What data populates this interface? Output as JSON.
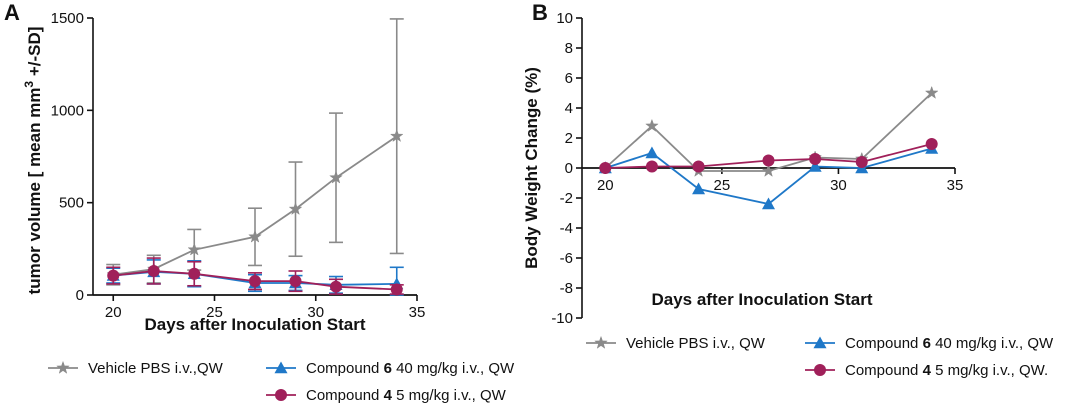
{
  "figure": {
    "panel_a_label": "A",
    "panel_b_label": "B"
  },
  "colors": {
    "vehicle": "#8a8a8a",
    "compound6": "#1f78c8",
    "compound4": "#a0205a",
    "axis": "#111111"
  },
  "chart_data": [
    {
      "type": "line",
      "panel": "A",
      "xlabel": "Days after Inoculation Start",
      "ylabel_pre": "tumor volume [ mean mm",
      "ylabel_sup": "3",
      "ylabel_post": " +/-SD]",
      "xlim": [
        19,
        35
      ],
      "ylim": [
        0,
        1500
      ],
      "xticks": [
        20,
        25,
        30,
        35
      ],
      "yticks": [
        0,
        500,
        1000,
        1500
      ],
      "x": [
        20,
        22,
        24,
        27,
        29,
        31,
        34
      ],
      "series": [
        {
          "key": "vehicle",
          "name": "Vehicle PBS i.v.,QW",
          "marker": "star",
          "values": [
            110,
            140,
            245,
            315,
            465,
            635,
            860
          ],
          "sd": [
            55,
            75,
            110,
            155,
            255,
            350,
            635
          ]
        },
        {
          "key": "compound6",
          "name": "Compound 6 40 mg/kg i.v., QW",
          "marker": "triangle",
          "values": [
            105,
            125,
            115,
            65,
            65,
            55,
            60
          ],
          "sd": [
            40,
            65,
            70,
            45,
            40,
            45,
            90
          ]
        },
        {
          "key": "compound4",
          "name": "Compound 4 5 mg/kg i.v., QW",
          "marker": "circle",
          "values": [
            105,
            130,
            115,
            75,
            75,
            45,
            30
          ],
          "sd": [
            45,
            70,
            65,
            45,
            55,
            40,
            25
          ]
        }
      ],
      "legend": [
        {
          "key": "vehicle",
          "marker": "star",
          "text": "Vehicle PBS i.v.,QW",
          "bold": "",
          "rest": ""
        },
        {
          "key": "compound6",
          "marker": "triangle",
          "text": "Compound ",
          "bold": "6",
          "rest": " 40 mg/kg i.v., QW"
        },
        {
          "key": "compound4",
          "marker": "circle",
          "text": "Compound ",
          "bold": "4",
          "rest": "   5 mg/kg i.v., QW"
        }
      ]
    },
    {
      "type": "line",
      "panel": "B",
      "xlabel": "Days after Inoculation Start",
      "ylabel": "Body Weight Change (%)",
      "xlim": [
        19,
        35
      ],
      "ylim": [
        -10,
        10
      ],
      "xticks": [
        20,
        25,
        30,
        35
      ],
      "yticks": [
        -10,
        -8,
        -6,
        -4,
        -2,
        0,
        2,
        4,
        6,
        8,
        10
      ],
      "x": [
        20,
        22,
        24,
        27,
        29,
        31,
        34
      ],
      "series": [
        {
          "key": "vehicle",
          "name": "Vehicle PBS i.v., QW",
          "marker": "star",
          "values": [
            0,
            2.8,
            -0.2,
            -0.2,
            0.7,
            0.6,
            5.0
          ]
        },
        {
          "key": "compound6",
          "name": "Compound 6 40 mg/kg i.v., QW",
          "marker": "triangle",
          "values": [
            0,
            1.0,
            -1.4,
            -2.4,
            0.1,
            0.0,
            1.3
          ]
        },
        {
          "key": "compound4",
          "name": "Compound 4 5 mg/kg i.v., QW.",
          "marker": "circle",
          "values": [
            0,
            0.1,
            0.1,
            0.5,
            0.6,
            0.4,
            1.6
          ]
        }
      ],
      "legend": [
        {
          "key": "vehicle",
          "marker": "star",
          "text": "Vehicle PBS i.v., QW",
          "bold": "",
          "rest": ""
        },
        {
          "key": "compound6",
          "marker": "triangle",
          "text": "Compound ",
          "bold": "6",
          "rest": " 40 mg/kg i.v., QW"
        },
        {
          "key": "compound4",
          "marker": "circle",
          "text": "Compound ",
          "bold": "4",
          "rest": "   5 mg/kg i.v., QW."
        }
      ]
    }
  ]
}
